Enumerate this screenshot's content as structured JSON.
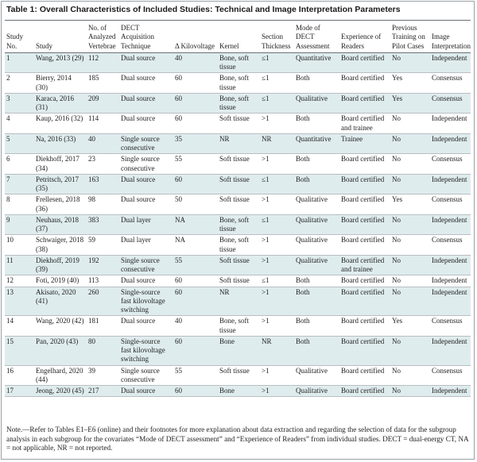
{
  "title": "Table 1: Overall Characteristics of Included Studies: Technical and Image Interpretation Parameters",
  "headers": [
    "Study No.",
    "Study",
    "No. of Analyzed Vertebrae",
    "DECT Acquisition Technique",
    "Δ Kilovoltage",
    "Kernel",
    "Section Thickness",
    "Mode of DECT Assessment",
    "Experience of Readers",
    "Previous Training on Pilot Cases",
    "Image Interpretation"
  ],
  "rows": [
    [
      "1",
      "Wang, 2013 (29)",
      "112",
      "Dual source",
      "40",
      "Bone, soft tissue",
      "≤1",
      "Quantitative",
      "Board certified",
      "No",
      "Independent"
    ],
    [
      "2",
      "Bierry, 2014 (30)",
      "185",
      "Dual source",
      "60",
      "Bone, soft tissue",
      "≤1",
      "Both",
      "Board certified",
      "Yes",
      "Consensus"
    ],
    [
      "3",
      "Karaca, 2016 (31)",
      "209",
      "Dual source",
      "60",
      "Bone, soft tissue",
      "≤1",
      "Qualitative",
      "Board certified",
      "Yes",
      "Consensus"
    ],
    [
      "4",
      "Kaup, 2016 (32)",
      "114",
      "Dual source",
      "60",
      "Soft tissue",
      ">1",
      "Both",
      "Board certified and trainee",
      "No",
      "Independent"
    ],
    [
      "5",
      "Na, 2016 (33)",
      "40",
      "Single source consecutive",
      "35",
      "NR",
      "NR",
      "Quantitative",
      "Trainee",
      "No",
      "Independent"
    ],
    [
      "6",
      "Diekhoff, 2017 (34)",
      "23",
      "Single source consecutive",
      "55",
      "Soft tissue",
      ">1",
      "Both",
      "Board certified",
      "No",
      "Consensus"
    ],
    [
      "7",
      "Petritsch, 2017 (35)",
      "163",
      "Dual source",
      "60",
      "Soft tissue",
      "≤1",
      "Both",
      "Board certified",
      "No",
      "Independent"
    ],
    [
      "8",
      "Frellesen, 2018 (36)",
      "98",
      "Dual source",
      "50",
      "Soft tissue",
      ">1",
      "Qualitative",
      "Board certified",
      "Yes",
      "Consensus"
    ],
    [
      "9",
      "Neuhaus, 2018 (37)",
      "383",
      "Dual layer",
      "NA",
      "Bone, soft tissue",
      "≤1",
      "Qualitative",
      "Board certified",
      "No",
      "Independent"
    ],
    [
      "10",
      "Schwaiger, 2018 (38)",
      "59",
      "Dual layer",
      "NA",
      "Bone, soft tissue",
      ">1",
      "Qualitative",
      "Board certified",
      "No",
      "Consensus"
    ],
    [
      "11",
      "Diekhoff, 2019 (39)",
      "192",
      "Single source consecutive",
      "55",
      "Soft tissue",
      ">1",
      "Qualitative",
      "Board certified and trainee",
      "No",
      "Independent"
    ],
    [
      "12",
      "Foti, 2019 (40)",
      "113",
      "Dual source",
      "60",
      "Soft tissue",
      "≤1",
      "Both",
      "Board certified",
      "No",
      "Independent"
    ],
    [
      "13",
      "Akisato, 2020 (41)",
      "260",
      "Single-source fast kilovoltage switching",
      "60",
      "NR",
      ">1",
      "Both",
      "Board certified",
      "No",
      "Independent"
    ],
    [
      "14",
      "Wang, 2020 (42)",
      "181",
      "Dual source",
      "40",
      "Bone, soft tissue",
      ">1",
      "Both",
      "Board certified",
      "Yes",
      "Consensus"
    ],
    [
      "15",
      "Pan, 2020 (43)",
      "80",
      "Single-source fast kilovoltage switching",
      "60",
      "Bone",
      "NR",
      "Both",
      "Board certified",
      "No",
      "Independent"
    ],
    [
      "16",
      "Engelhard, 2020 (44)",
      "39",
      "Single source consecutive",
      "55",
      "Soft tissue",
      ">1",
      "Qualitative",
      "Board certified",
      "No",
      "Consensus"
    ],
    [
      "17",
      "Jeong, 2020 (45)",
      "217",
      "Dual source",
      "60",
      "Bone",
      ">1",
      "Qualitative",
      "Board certified",
      "No",
      "Independent"
    ]
  ],
  "note": "Note.—Refer to Tables E1–E6 (online) and their footnotes for more explanation about data extraction and regarding the selection of data for the subgroup analysis in each subgroup for the covariates “Mode of DECT assessment” and “Experience of Readers” from individual studies. DECT = dual-energy CT, NA = not applicable, NR = not reported.",
  "colors": {
    "stripe": "#dfecee",
    "rule": "#6b7074",
    "text": "#222222"
  }
}
